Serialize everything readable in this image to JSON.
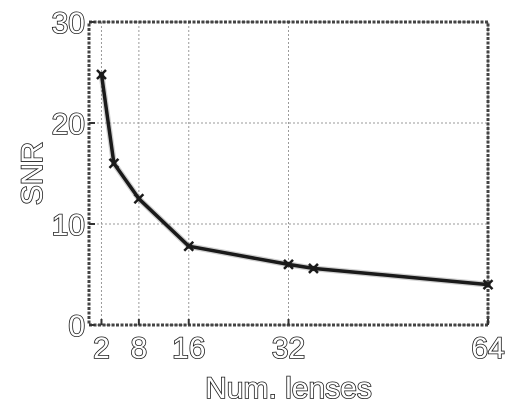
{
  "chart_data": {
    "type": "line",
    "title": "",
    "xlabel": "Num. lenses",
    "ylabel": "SNR",
    "xlim": [
      0,
      64
    ],
    "ylim": [
      0,
      30
    ],
    "xticks": [
      2,
      8,
      16,
      32,
      64
    ],
    "yticks": [
      0,
      10,
      20,
      30
    ],
    "grid": true,
    "series": [
      {
        "x": [
          2,
          4,
          8,
          16,
          32,
          36,
          64
        ],
        "y": [
          24.8,
          16.0,
          12.5,
          7.8,
          6.0,
          5.6,
          4.0
        ]
      }
    ],
    "colors": {
      "line": "#1a1a1a",
      "marker": "#1a1a1a"
    }
  }
}
